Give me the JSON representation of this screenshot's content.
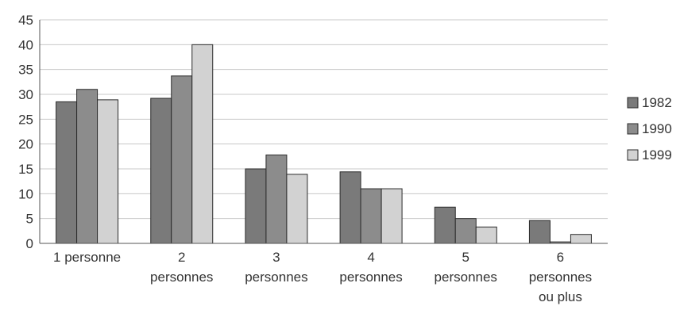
{
  "chart_data": {
    "type": "bar",
    "title": "",
    "xlabel": "",
    "ylabel": "",
    "ylim": [
      0,
      45
    ],
    "yticks": [
      0,
      5,
      10,
      15,
      20,
      25,
      30,
      35,
      40,
      45
    ],
    "grid": true,
    "legend_position": "right",
    "categories": [
      [
        "1 personne"
      ],
      [
        "2",
        "personnes"
      ],
      [
        "3",
        "personnes"
      ],
      [
        "4",
        "personnes"
      ],
      [
        "5",
        "personnes"
      ],
      [
        "6",
        "personnes",
        "ou plus"
      ]
    ],
    "series": [
      {
        "name": "1982",
        "color": "#7a7a7a",
        "values": [
          28.5,
          29.2,
          15.0,
          14.4,
          7.3,
          4.6
        ]
      },
      {
        "name": "1990",
        "color": "#8c8c8c",
        "values": [
          31.0,
          33.7,
          17.8,
          11.0,
          5.0,
          0.3
        ]
      },
      {
        "name": "1999",
        "color": "#d2d2d2",
        "values": [
          28.9,
          40.0,
          13.9,
          11.0,
          3.3,
          1.8
        ]
      }
    ]
  }
}
